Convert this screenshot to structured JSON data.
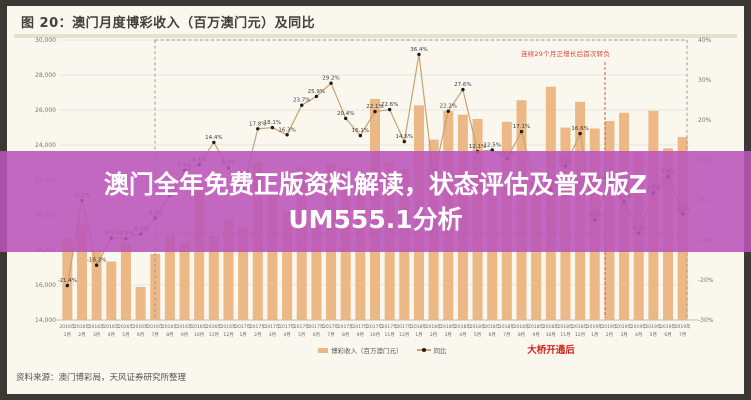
{
  "header": {
    "title": "图 20：澳门月度博彩收入（百万澳门元）及同比"
  },
  "overlay": {
    "line1": "澳门全年免费正版资料解读，状态评估及普及版Z",
    "line2": "UM555.1分析",
    "band_color": "#bb54ba"
  },
  "footer": {
    "source": "资料来源：澳门博彩局，天风证券研究所整理"
  },
  "chart_data": {
    "type": "combo-bar-line",
    "title": "澳门月度博彩收入（百万澳门元）及同比",
    "categories": [
      "2016年1月",
      "2016年2月",
      "2016年3月",
      "2016年4月",
      "2016年5月",
      "2016年6月",
      "2016年7月",
      "2016年8月",
      "2016年9月",
      "2016年10月",
      "2016年11月",
      "2016年12月",
      "2017年1月",
      "2017年2月",
      "2017年3月",
      "2017年4月",
      "2017年5月",
      "2017年6月",
      "2017年7月",
      "2017年8月",
      "2017年9月",
      "2017年10月",
      "2017年11月",
      "2017年12月",
      "2018年1月",
      "2018年2月",
      "2018年3月",
      "2018年4月",
      "2018年5月",
      "2018年6月",
      "2018年7月",
      "2018年8月",
      "2018年9月",
      "2018年10月",
      "2018年11月",
      "2018年12月",
      "2019年1月",
      "2019年2月",
      "2019年3月",
      "2019年4月",
      "2019年5月",
      "2019年6月",
      "2019年7月"
    ],
    "series": [
      {
        "name": "博彩收入（百万澳门元）",
        "type": "bar",
        "axis": "left",
        "color": "#ecb886",
        "values": [
          18674,
          19519,
          17980,
          17340,
          18389,
          15885,
          17771,
          18837,
          18430,
          21818,
          18786,
          19743,
          19249,
          22988,
          21232,
          20164,
          22744,
          19992,
          22965,
          22675,
          21399,
          26630,
          23038,
          22634,
          26265,
          24312,
          25952,
          25727,
          25488,
          22490,
          25327,
          26559,
          21952,
          27328,
          24995,
          26468,
          24942,
          25370,
          25840,
          23588,
          25952,
          23812,
          24453
        ]
      },
      {
        "name": "同比",
        "type": "line",
        "axis": "right",
        "color": "#c8a36e",
        "marker_color": "#1c1c1c",
        "values_pct": [
          -21.4,
          -0.1,
          -16.3,
          -9.5,
          -9.6,
          -8.5,
          -4.5,
          1.1,
          7.4,
          8.8,
          14.4,
          8.0,
          3.1,
          17.8,
          18.1,
          16.3,
          23.7,
          25.9,
          29.2,
          20.4,
          16.1,
          22.1,
          22.6,
          14.6,
          36.4,
          5.7,
          22.2,
          27.6,
          12.1,
          12.5,
          10.3,
          17.1,
          2.8,
          2.6,
          8.5,
          16.6,
          -5.0,
          4.4,
          -0.4,
          -8.3,
          1.8,
          5.9,
          -3.5
        ]
      }
    ],
    "left_axis": {
      "min": 14000,
      "max": 30000,
      "step": 2000,
      "labels": [
        "30,000",
        "28,000",
        "26,000",
        "24,000",
        "22,000",
        "20,000",
        "18,000",
        "16,000",
        "14,000"
      ]
    },
    "right_axis": {
      "min": -30,
      "max": 40,
      "step": 10,
      "labels": [
        "40%",
        "30%",
        "20%",
        "10%",
        "0%",
        "-10%",
        "-20%",
        "-30%"
      ]
    },
    "legend_position": "bottom",
    "grid": true,
    "annotations": {
      "growth_box_label": "连续29个月正增长后首次转负",
      "bridge_label": "大桥开通后",
      "annotation_color": "#d8453a"
    }
  }
}
